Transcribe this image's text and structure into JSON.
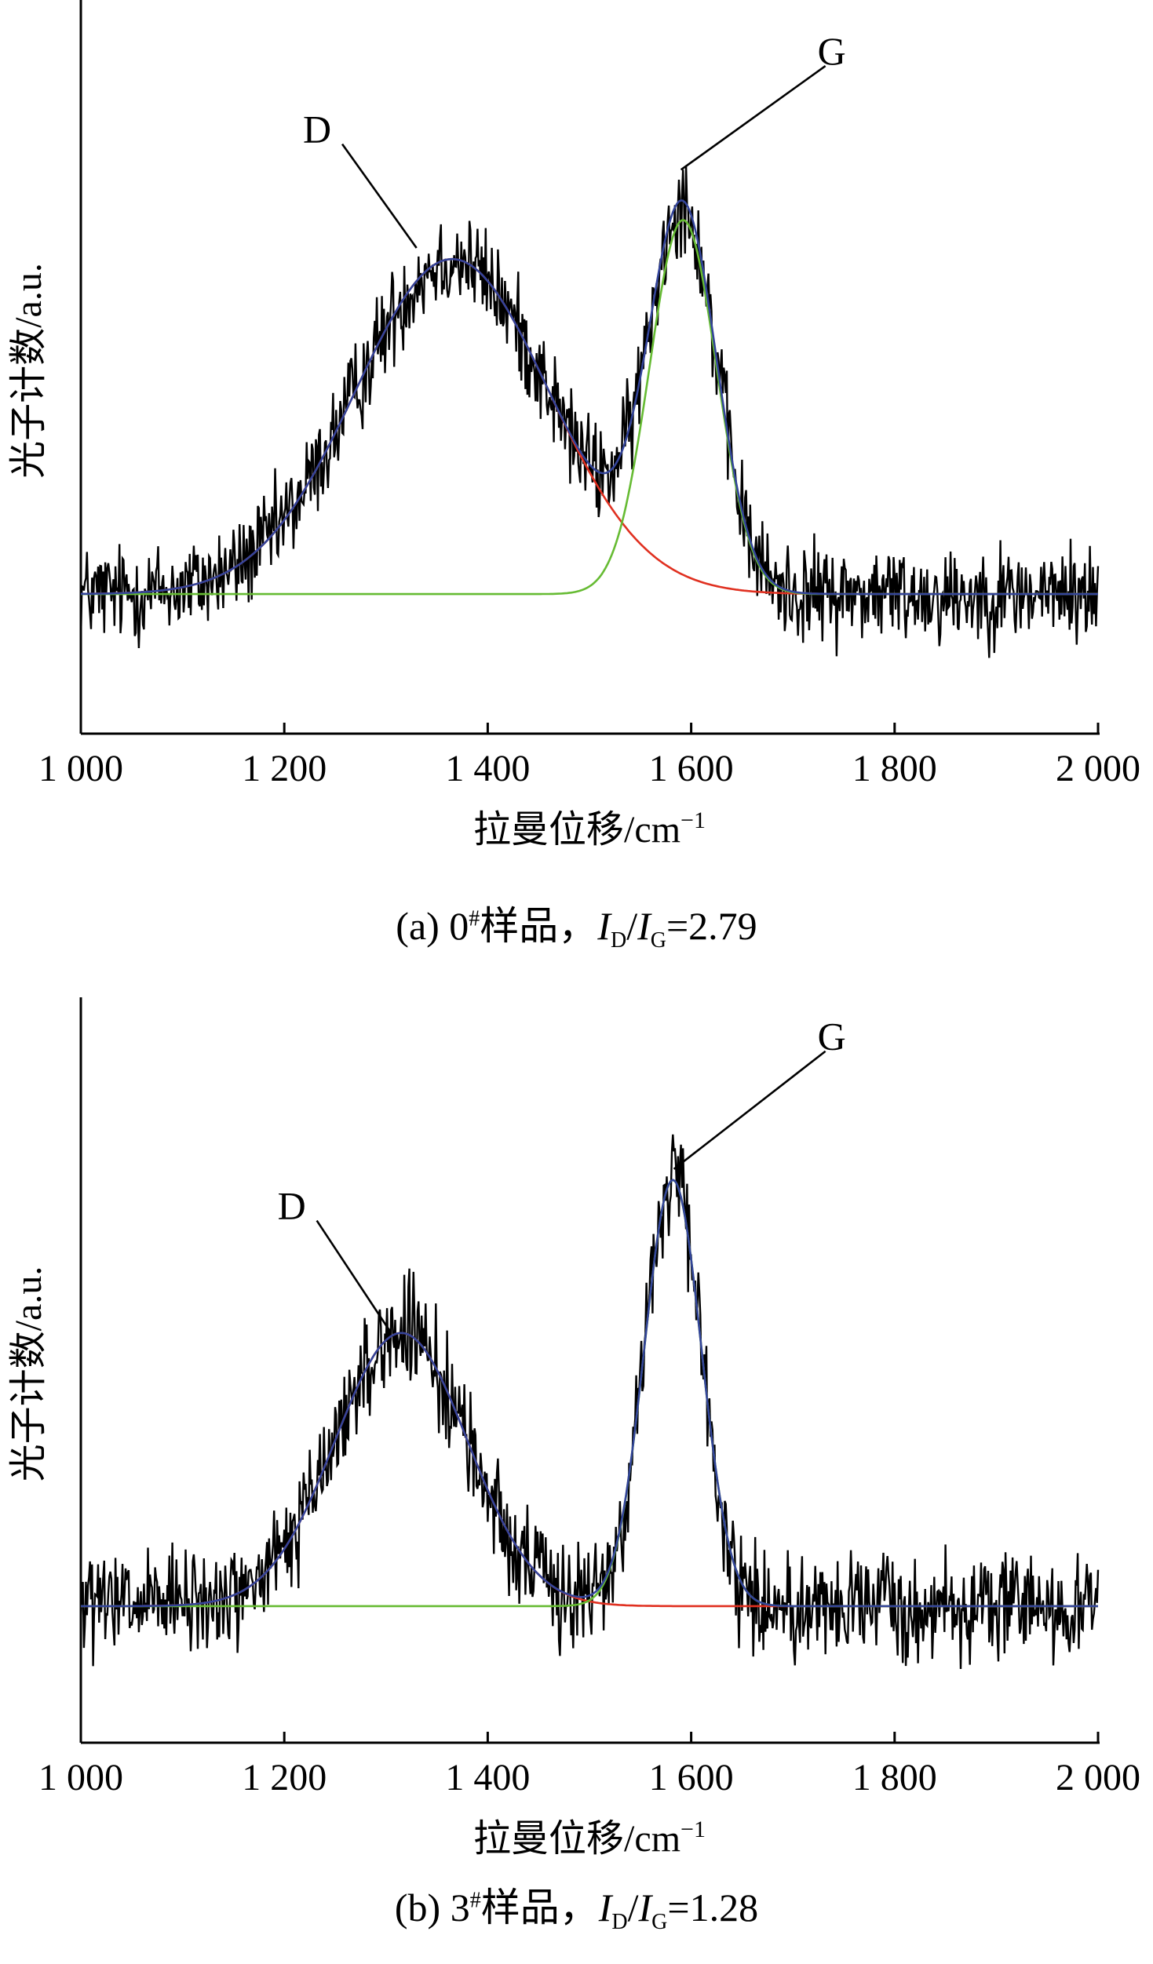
{
  "chart_data": [
    {
      "type": "line",
      "caption": {
        "prefix": "(a) 0",
        "sup": "#",
        "sample": "样品，",
        "I": "I",
        "D": "D",
        "slash": "/",
        "G": "G",
        "value": "=2.79"
      },
      "xlabel": "拉曼位移/cm",
      "xlabel_sup": "−1",
      "ylabel": "光子计数/a.u.",
      "xlim": [
        1000,
        2000
      ],
      "ylim": [
        -0.25,
        1.05
      ],
      "xticks": [
        1000,
        1200,
        1400,
        1600,
        1800,
        2000
      ],
      "xtick_labels": [
        "1 000",
        "1 200",
        "1 400",
        "1 600",
        "1 800",
        "2 000"
      ],
      "yticks": [],
      "grid": false,
      "annotations": [
        {
          "text": "D",
          "point_x": 1330,
          "point_y": 0.62,
          "label_x": 1240,
          "label_y": 0.82
        },
        {
          "text": "G",
          "point_x": 1590,
          "point_y": 0.76,
          "label_x": 1715,
          "label_y": 0.96
        }
      ],
      "baseline": 0.0,
      "peaks": {
        "D": {
          "center": 1365,
          "amplitude": 0.6,
          "sigma": 95
        },
        "G": {
          "center": 1592,
          "amplitude": 0.67,
          "sigma": 33
        }
      },
      "noise": 0.055,
      "series": [
        {
          "name": "raw",
          "role": "measured",
          "color": "#000000"
        },
        {
          "name": "D",
          "role": "D-fit",
          "color": "#e03020"
        },
        {
          "name": "G",
          "role": "G-fit",
          "color": "#66bb33"
        },
        {
          "name": "sum",
          "role": "envelope",
          "color": "#33449a"
        }
      ]
    },
    {
      "type": "line",
      "caption": {
        "prefix": "(b) 3",
        "sup": "#",
        "sample": "样品，",
        "I": "I",
        "D": "D",
        "slash": "/",
        "G": "G",
        "value": "=1.28"
      },
      "xlabel": "拉曼位移/cm",
      "xlabel_sup": "−1",
      "ylabel": "光子计数/a.u.",
      "xlim": [
        1000,
        2000
      ],
      "ylim": [
        -0.25,
        1.1
      ],
      "xticks": [
        1000,
        1200,
        1400,
        1600,
        1800,
        2000
      ],
      "xtick_labels": [
        "1 000",
        "1 200",
        "1 400",
        "1 600",
        "1 800",
        "2 000"
      ],
      "yticks": [],
      "grid": false,
      "annotations": [
        {
          "text": "D",
          "point_x": 1305,
          "point_y": 0.5,
          "label_x": 1215,
          "label_y": 0.72
        },
        {
          "text": "G",
          "point_x": 1583,
          "point_y": 0.8,
          "label_x": 1715,
          "label_y": 1.03
        }
      ],
      "baseline": 0.0,
      "peaks": {
        "D": {
          "center": 1315,
          "amplitude": 0.5,
          "sigma": 65
        },
        "G": {
          "center": 1582,
          "amplitude": 0.78,
          "sigma": 28
        }
      },
      "noise": 0.06,
      "series": [
        {
          "name": "raw",
          "role": "measured",
          "color": "#000000"
        },
        {
          "name": "D",
          "role": "D-fit",
          "color": "#e03020"
        },
        {
          "name": "G",
          "role": "G-fit",
          "color": "#66bb33"
        },
        {
          "name": "sum",
          "role": "envelope",
          "color": "#33449a"
        }
      ]
    }
  ]
}
